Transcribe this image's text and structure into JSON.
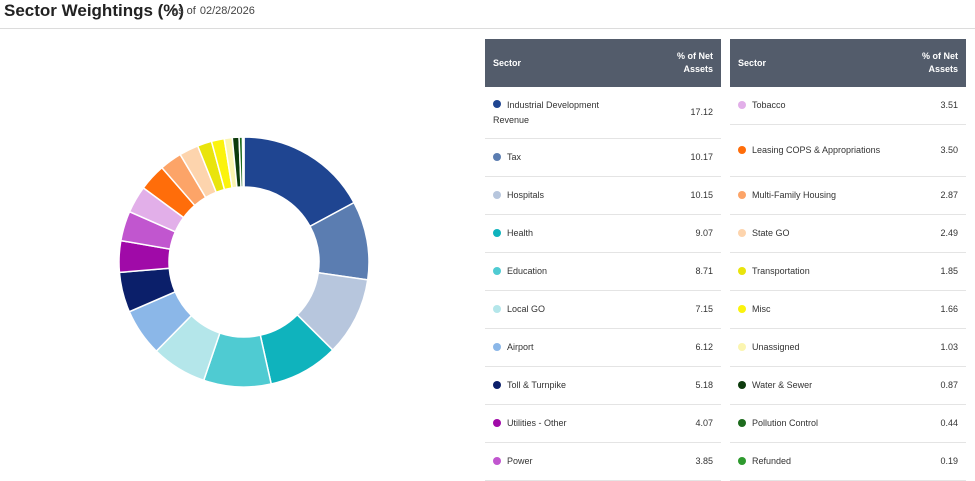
{
  "header": {
    "title": "Sector Weightings (%)",
    "as_of_label": "as of",
    "as_of_date": "02/28/2026"
  },
  "table_headers": {
    "sector": "Sector",
    "pct": "% of Net Assets"
  },
  "sectors": [
    {
      "name": "Industrial Development Revenue",
      "value": "17.12",
      "color": "#1f4591"
    },
    {
      "name": "Tax",
      "value": "10.17",
      "color": "#5b7db1"
    },
    {
      "name": "Hospitals",
      "value": "10.15",
      "color": "#b7c6dd"
    },
    {
      "name": "Health",
      "value": "9.07",
      "color": "#0fb3bd"
    },
    {
      "name": "Education",
      "value": "8.71",
      "color": "#4fcbd2"
    },
    {
      "name": "Local GO",
      "value": "7.15",
      "color": "#b4e6ea"
    },
    {
      "name": "Airport",
      "value": "6.12",
      "color": "#8bb7e8"
    },
    {
      "name": "Toll & Turnpike",
      "value": "5.18",
      "color": "#0b1f6a"
    },
    {
      "name": "Utilities - Other",
      "value": "4.07",
      "color": "#a00aa8"
    },
    {
      "name": "Power",
      "value": "3.85",
      "color": "#c156cf"
    },
    {
      "name": "Tobacco",
      "value": "3.51",
      "color": "#e2afe9"
    },
    {
      "name": "Leasing COPS & Appropriations",
      "value": "3.50",
      "color": "#ff6d0a"
    },
    {
      "name": "Multi-Family Housing",
      "value": "2.87",
      "color": "#fca468"
    },
    {
      "name": "State GO",
      "value": "2.49",
      "color": "#fdd4ad"
    },
    {
      "name": "Transportation",
      "value": "1.85",
      "color": "#e9e40c"
    },
    {
      "name": "Misc",
      "value": "1.66",
      "color": "#fbf30d"
    },
    {
      "name": "Unassigned",
      "value": "1.03",
      "color": "#fbf5b0"
    },
    {
      "name": "Water & Sewer",
      "value": "0.87",
      "color": "#0d3b0d"
    },
    {
      "name": "Pollution Control",
      "value": "0.44",
      "color": "#1d6b1d"
    },
    {
      "name": "Refunded",
      "value": "0.19",
      "color": "#2e9a2e"
    }
  ],
  "chart_data": {
    "type": "pie",
    "style": "donut",
    "title": "Sector Weightings (%)",
    "categories": [
      "Industrial Development Revenue",
      "Tax",
      "Hospitals",
      "Health",
      "Education",
      "Local GO",
      "Airport",
      "Toll & Turnpike",
      "Utilities - Other",
      "Power",
      "Tobacco",
      "Leasing COPS & Appropriations",
      "Multi-Family Housing",
      "State GO",
      "Transportation",
      "Misc",
      "Unassigned",
      "Water & Sewer",
      "Pollution Control",
      "Refunded"
    ],
    "values": [
      17.12,
      10.17,
      10.15,
      9.07,
      8.71,
      7.15,
      6.12,
      5.18,
      4.07,
      3.85,
      3.51,
      3.5,
      2.87,
      2.49,
      1.85,
      1.66,
      1.03,
      0.87,
      0.44,
      0.19
    ],
    "colors": [
      "#1f4591",
      "#5b7db1",
      "#b7c6dd",
      "#0fb3bd",
      "#4fcbd2",
      "#b4e6ea",
      "#8bb7e8",
      "#0b1f6a",
      "#a00aa8",
      "#c156cf",
      "#e2afe9",
      "#ff6d0a",
      "#fca468",
      "#fdd4ad",
      "#e9e40c",
      "#fbf30d",
      "#fbf5b0",
      "#0d3b0d",
      "#1d6b1d",
      "#2e9a2e"
    ],
    "legend": "tables-right"
  }
}
